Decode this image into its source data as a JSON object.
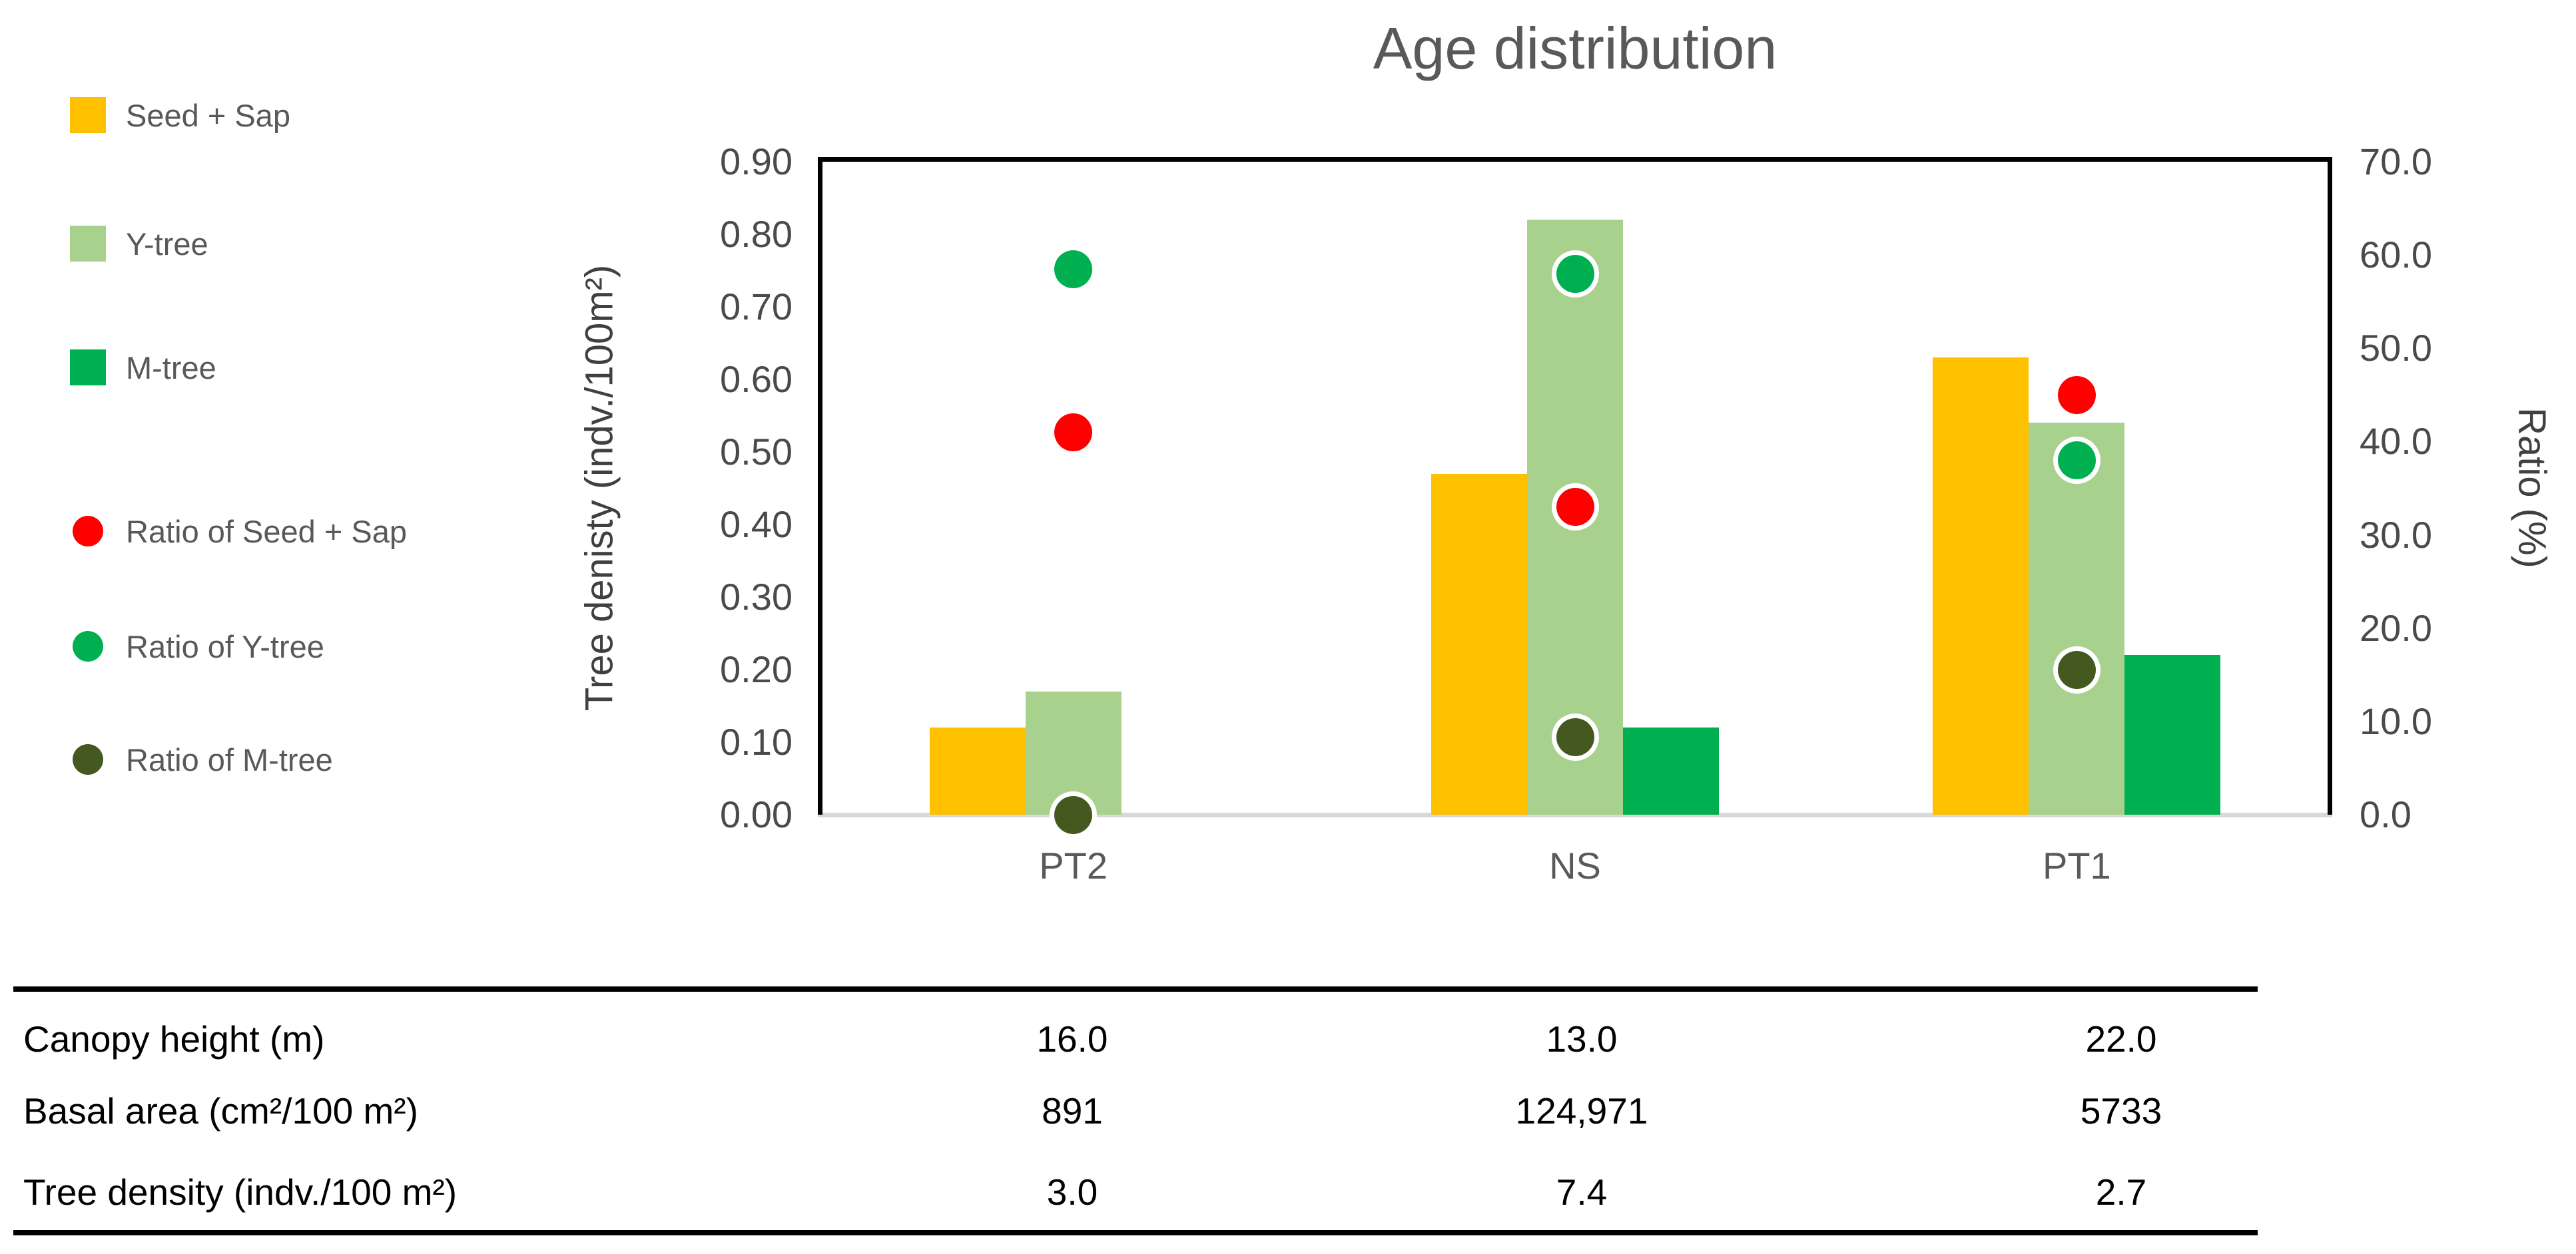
{
  "title": "Age distribution",
  "legend": {
    "items": [
      {
        "label": "Seed + Sap",
        "marker": "square",
        "color": "#FFC000"
      },
      {
        "label": "Y-tree",
        "marker": "square",
        "color": "#A9D18E"
      },
      {
        "label": "M-tree",
        "marker": "square",
        "color": "#00B050"
      },
      {
        "label": "Ratio of Seed + Sap",
        "marker": "circle",
        "color": "#FF0000"
      },
      {
        "label": "Ratio of Y-tree",
        "marker": "circle",
        "color": "#00B050"
      },
      {
        "label": "Ratio of M-tree",
        "marker": "circle",
        "color": "#44591F"
      }
    ]
  },
  "chart_data": {
    "type": "bar+scatter",
    "title": "Age distribution",
    "categories": [
      "PT2",
      "NS",
      "PT1"
    ],
    "bar_series": [
      {
        "name": "Seed + Sap",
        "axis": "left",
        "color": "#FFC000",
        "values": [
          0.12,
          0.47,
          0.63
        ]
      },
      {
        "name": "Y-tree",
        "axis": "left",
        "color": "#A9D18E",
        "values": [
          0.17,
          0.82,
          0.54
        ]
      },
      {
        "name": "M-tree",
        "axis": "left",
        "color": "#00B050",
        "values": [
          0.0,
          0.12,
          0.22
        ]
      }
    ],
    "scatter_series": [
      {
        "name": "Ratio of Seed + Sap",
        "axis": "right",
        "color": "#FF0000",
        "values": [
          41.0,
          33.0,
          45.0
        ]
      },
      {
        "name": "Ratio of Y-tree",
        "axis": "right",
        "color": "#00B050",
        "values": [
          58.5,
          58.0,
          38.0
        ]
      },
      {
        "name": "Ratio of M-tree",
        "axis": "right",
        "color": "#44591F",
        "values": [
          0.0,
          8.3,
          15.5
        ]
      }
    ],
    "left_axis": {
      "label": "Tree denisty (indv./100m²)",
      "min": 0,
      "max": 0.9,
      "ticks": [
        "0.00",
        "0.10",
        "0.20",
        "0.30",
        "0.40",
        "0.50",
        "0.60",
        "0.70",
        "0.80",
        "0.90"
      ]
    },
    "right_axis": {
      "label": "Ratio (%)",
      "min": 0,
      "max": 70,
      "ticks": [
        "0.0",
        "10.0",
        "20.0",
        "30.0",
        "40.0",
        "50.0",
        "60.0",
        "70.0"
      ]
    },
    "gridlines": false,
    "legend_position": "left",
    "baseline_color": "#D9D9D9"
  },
  "table": {
    "rows": [
      {
        "label": "Canopy height (m)",
        "values": [
          "16.0",
          "13.0",
          "22.0"
        ]
      },
      {
        "label": "Basal area (cm²/100 m²)",
        "values": [
          "891",
          "124,971",
          "5733"
        ]
      },
      {
        "label": "Tree density (indv./100 m²)",
        "values": [
          "3.0",
          "7.4",
          "2.7"
        ]
      }
    ]
  }
}
